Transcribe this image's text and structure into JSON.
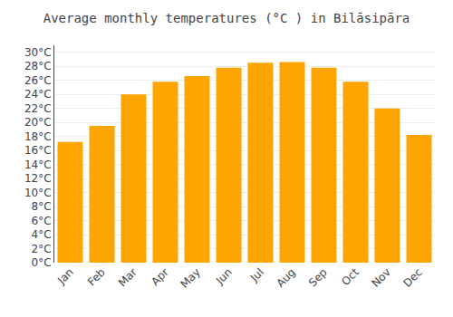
{
  "chart_data": {
    "type": "bar",
    "title": "Average monthly temperatures (°C ) in Bilāsipāra",
    "categories": [
      "Jan",
      "Feb",
      "Mar",
      "Apr",
      "May",
      "Jun",
      "Jul",
      "Aug",
      "Sep",
      "Oct",
      "Nov",
      "Dec"
    ],
    "values": [
      17.2,
      19.5,
      24.0,
      25.8,
      26.6,
      27.8,
      28.5,
      28.6,
      27.8,
      25.8,
      22.0,
      18.2
    ],
    "color": "#FFA500",
    "ylim": [
      0,
      31
    ],
    "yticks": [
      {
        "value": 0,
        "label": "0°C"
      },
      {
        "value": 2,
        "label": "2°C"
      },
      {
        "value": 4,
        "label": "4°C"
      },
      {
        "value": 6,
        "label": "6°C"
      },
      {
        "value": 8,
        "label": "8°C"
      },
      {
        "value": 10,
        "label": "10°C"
      },
      {
        "value": 12,
        "label": "12°C"
      },
      {
        "value": 14,
        "label": "14°C"
      },
      {
        "value": 16,
        "label": "16°C"
      },
      {
        "value": 18,
        "label": "18°C"
      },
      {
        "value": 20,
        "label": "20°C"
      },
      {
        "value": 22,
        "label": "22°C"
      },
      {
        "value": 24,
        "label": "24°C"
      },
      {
        "value": 26,
        "label": "26°C"
      },
      {
        "value": 28,
        "label": "28°C"
      },
      {
        "value": 30,
        "label": "30°C"
      }
    ],
    "grid": true
  }
}
